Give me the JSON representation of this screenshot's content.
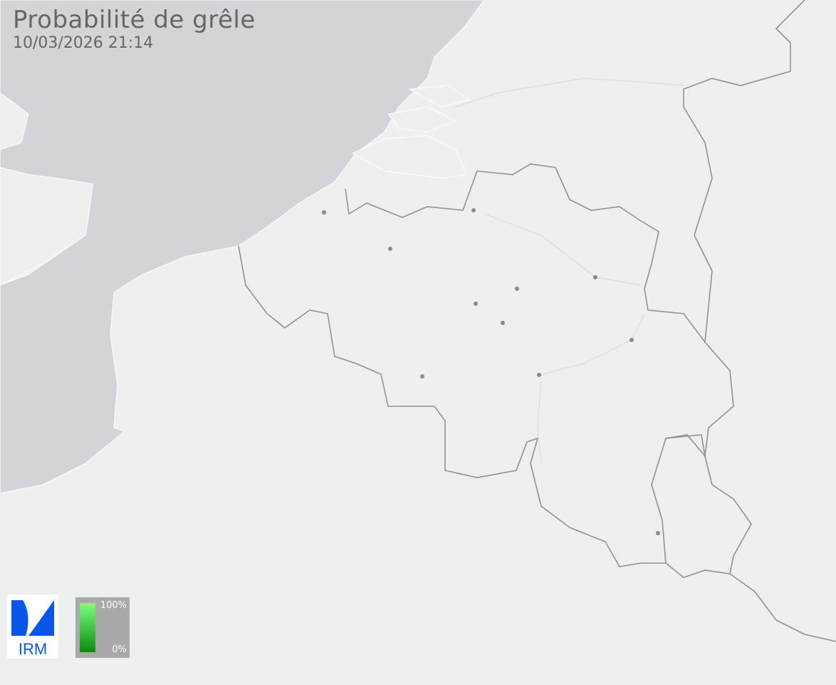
{
  "header": {
    "title": "Probabilité de grêle",
    "timestamp": "10/03/2026 21:14"
  },
  "legend": {
    "max_label": "100%",
    "min_label": "0%",
    "color_max": "#7cff80",
    "color_min": "#0a8a12"
  },
  "logo": {
    "text": "IRM",
    "color": "#0a56e6"
  },
  "colors": {
    "land": "#eef0f0",
    "sea": "#d2d5d7",
    "border": "#8f9193",
    "city": "#8a8a8a"
  }
}
